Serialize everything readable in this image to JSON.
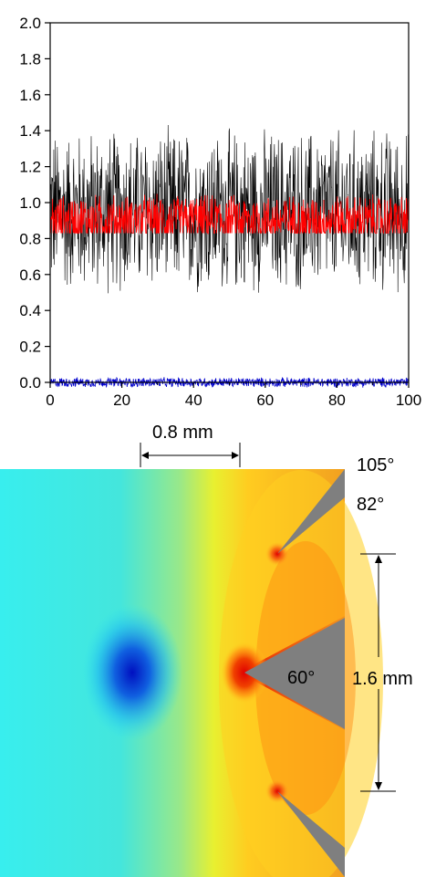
{
  "chart_data": {
    "type": "line",
    "xlim": [
      0,
      100
    ],
    "ylim": [
      0,
      2.0
    ],
    "x_ticks": [
      "0",
      "20",
      "40",
      "60",
      "80",
      "100"
    ],
    "y_ticks": [
      "0.0",
      "0.2",
      "0.4",
      "0.6",
      "0.8",
      "1.0",
      "1.2",
      "1.4",
      "1.6",
      "1.8",
      "2.0"
    ],
    "grid": false,
    "legend": "none",
    "series": [
      {
        "color": "#000000",
        "mean": 0.95,
        "noise_amplitude": 0.5,
        "min": 0.45,
        "max": 1.5
      },
      {
        "color": "#ff0000",
        "mean": 0.9,
        "noise_amplitude": 0.16,
        "min": 0.83,
        "max": 1.05
      },
      {
        "color": "#0000cc",
        "mean": 0.0,
        "noise_amplitude": 0.03,
        "min": -0.03,
        "max": 0.04
      }
    ]
  },
  "field_figure": {
    "annotations": {
      "gap_label": "0.8 mm",
      "outer_angle_label": "105°",
      "inner_angle_label": "82°",
      "tip_angle_label": "60°",
      "spacing_label": "1.6 mm"
    },
    "colors": {
      "field_low": "#0010d0",
      "field_background": "#30e8e8",
      "field_mid": "#f0f020",
      "field_high": "#e80000",
      "electrode": "#808080"
    }
  }
}
